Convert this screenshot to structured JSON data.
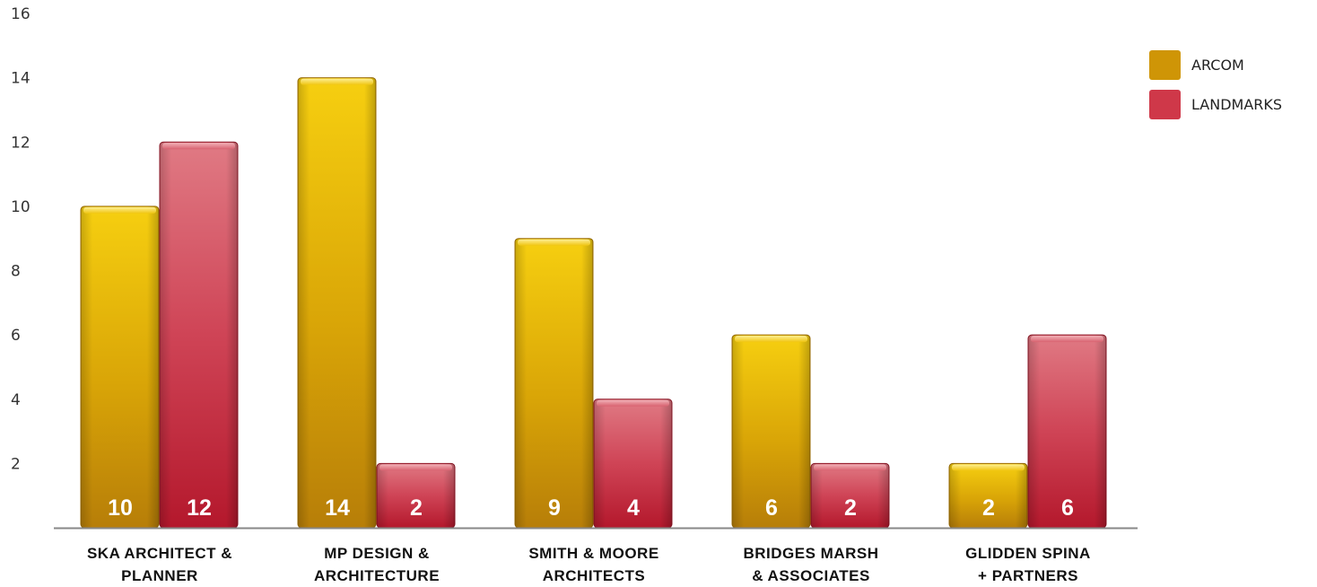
{
  "chart_data": {
    "type": "bar",
    "categories": [
      [
        "SKA ARCHITECT &",
        "PLANNER"
      ],
      [
        "MP DESIGN &",
        "ARCHITECTURE"
      ],
      [
        "SMITH & MOORE",
        "ARCHITECTS"
      ],
      [
        "BRIDGES MARSH",
        "& ASSOCIATES"
      ],
      [
        "GLIDDEN SPINA",
        "+ PARTNERS"
      ]
    ],
    "series": [
      {
        "name": "ARCOM",
        "values": [
          10,
          14,
          9,
          6,
          2
        ],
        "color": "#d4a106"
      },
      {
        "name": "LANDMARKS",
        "values": [
          12,
          2,
          4,
          2,
          6
        ],
        "color": "#c93a4a"
      }
    ],
    "yticks": [
      "2",
      "4",
      "6",
      "8",
      "10",
      "12",
      "14",
      "16"
    ],
    "ylim": [
      0,
      16
    ],
    "title": "",
    "xlabel": "",
    "ylabel": "",
    "legend_position": "top-right",
    "grid": false,
    "data_labels": true
  }
}
